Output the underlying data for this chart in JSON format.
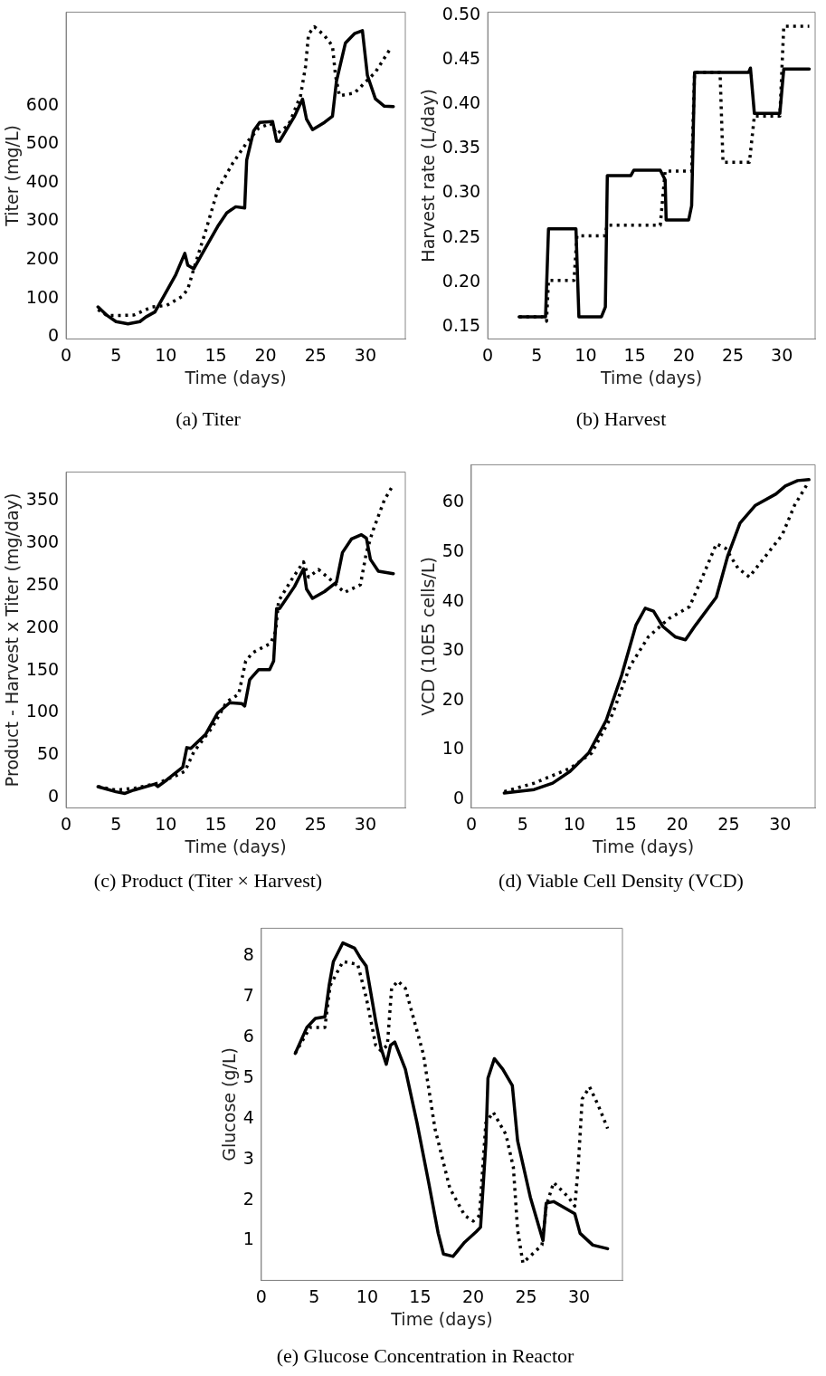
{
  "chart_data": [
    {
      "type": "line",
      "xlabel": "Time (days)",
      "ylabel": "Titer (mg/L)",
      "annotations": [
        "(a) Titer"
      ],
      "xlim": [
        0,
        34
      ],
      "ylim": [
        -5,
        843
      ],
      "xticks": [
        0,
        5,
        10,
        15,
        20,
        25,
        30
      ],
      "yticks": [
        0,
        100,
        200,
        300,
        400,
        500,
        600
      ],
      "series": [
        {
          "color": "#000000",
          "line_style": "solid",
          "x": [
            3.2,
            4.1,
            5.0,
            6.2,
            7.4,
            8.0,
            8.9,
            10.1,
            11.0,
            11.9,
            12.2,
            12.8,
            13.7,
            15.2,
            16.1,
            17.0,
            17.9,
            18.1,
            18.8,
            19.4,
            20.7,
            21.1,
            21.4,
            22.9,
            23.7,
            24.1,
            24.7,
            25.9,
            26.7,
            27.1,
            28.0,
            28.9,
            29.7,
            30.2,
            31.0,
            31.9,
            32.8
          ],
          "values": [
            78,
            56,
            40,
            34,
            40,
            52,
            65,
            120,
            162,
            217,
            186,
            177,
            219,
            287,
            322,
            338,
            335,
            459,
            535,
            557,
            559,
            508,
            508,
            573,
            617,
            565,
            538,
            557,
            573,
            664,
            763,
            787,
            795,
            679,
            618,
            599,
            598
          ]
        },
        {
          "color": "#000000",
          "line_style": "dotted",
          "x": [
            3.2,
            4.1,
            5.6,
            6.8,
            8.6,
            10.1,
            11.6,
            12.2,
            12.8,
            14.0,
            15.2,
            16.7,
            18.1,
            19.3,
            20.5,
            21.1,
            22.3,
            23.5,
            24.0,
            24.3,
            24.9,
            25.9,
            26.7,
            27.0,
            27.4,
            28.9,
            30.1,
            31.0,
            32.5
          ],
          "values": [
            71,
            56,
            56,
            57,
            78,
            82,
            105,
            124,
            177,
            276,
            382,
            451,
            504,
            542,
            554,
            527,
            550,
            626,
            702,
            786,
            805,
            782,
            755,
            679,
            626,
            633,
            664,
            687,
            748
          ]
        }
      ]
    },
    {
      "type": "line",
      "xlabel": "Time (days)",
      "ylabel": "Harvest rate (L/day)",
      "annotations": [
        "(b) Harvest"
      ],
      "xlim": [
        0,
        33.4
      ],
      "ylim": [
        0.136,
        0.504
      ],
      "xticks": [
        0,
        5,
        10,
        15,
        20,
        25,
        30
      ],
      "yticks": [
        0.15,
        {
          "value": 0.2,
          "label": "0.20"
        },
        0.25,
        {
          "value": 0.3,
          "label": "0.30"
        },
        0.35,
        {
          "value": 0.4,
          "label": "0.40"
        },
        0.45,
        {
          "value": 0.5,
          "label": "0.50"
        }
      ],
      "series": [
        {
          "color": "#000000",
          "line_style": "solid",
          "x": [
            3.2,
            5.9,
            6.2,
            9.0,
            9.3,
            11.6,
            12.0,
            12.2,
            14.6,
            14.9,
            17.6,
            18.1,
            18.2,
            20.5,
            20.8,
            21.1,
            26.6,
            26.8,
            27.2,
            29.8,
            30.2,
            32.8
          ],
          "values": [
            0.161,
            0.161,
            0.26,
            0.26,
            0.161,
            0.161,
            0.172,
            0.32,
            0.32,
            0.326,
            0.326,
            0.315,
            0.27,
            0.27,
            0.286,
            0.436,
            0.436,
            0.441,
            0.39,
            0.39,
            0.44,
            0.44
          ]
        },
        {
          "color": "#000000",
          "line_style": "dotted",
          "x": [
            3.2,
            5.6,
            6.0,
            6.2,
            8.8,
            9.1,
            11.9,
            12.2,
            17.6,
            18.1,
            20.8,
            21.1,
            23.7,
            24.0,
            26.7,
            27.2,
            29.8,
            30.2,
            32.8
          ],
          "values": [
            0.161,
            0.161,
            0.156,
            0.202,
            0.202,
            0.252,
            0.252,
            0.264,
            0.264,
            0.325,
            0.325,
            0.436,
            0.436,
            0.335,
            0.335,
            0.387,
            0.387,
            0.488,
            0.488
          ]
        }
      ]
    },
    {
      "type": "line",
      "xlabel": "Time (days)",
      "ylabel": "Product - Harvest x Titer (mg/day)",
      "annotations": [
        "(c) Product (Titer × Harvest)"
      ],
      "xlim": [
        0,
        34
      ],
      "ylim": [
        -12,
        384
      ],
      "xticks": [
        0,
        5,
        10,
        15,
        20,
        25,
        30
      ],
      "yticks": [
        0,
        50,
        100,
        150,
        200,
        250,
        300,
        350
      ],
      "series": [
        {
          "color": "#000000",
          "line_style": "solid",
          "x": [
            3.2,
            5.0,
            5.9,
            6.8,
            8.9,
            9.2,
            10.1,
            11.7,
            12.1,
            12.5,
            14.0,
            15.2,
            16.4,
            17.6,
            17.9,
            18.4,
            19.3,
            20.4,
            20.8,
            21.1,
            21.4,
            22.9,
            23.8,
            24.1,
            24.7,
            25.9,
            27.1,
            27.7,
            28.6,
            29.6,
            30.1,
            30.5,
            31.3,
            32.8
          ],
          "values": [
            13,
            7,
            5,
            9,
            16,
            13,
            21,
            36,
            59,
            58,
            75,
            100,
            112,
            111,
            108,
            139,
            151,
            151,
            161,
            223,
            223,
            249,
            270,
            246,
            235,
            243,
            254,
            289,
            305,
            310,
            306,
            281,
            267,
            264
          ]
        },
        {
          "color": "#000000",
          "line_style": "dotted",
          "x": [
            3.2,
            5.0,
            6.8,
            9.2,
            11.0,
            11.9,
            12.8,
            14.6,
            16.1,
            17.3,
            18.0,
            18.7,
            20.5,
            21.0,
            21.3,
            22.6,
            23.8,
            24.3,
            25.3,
            26.5,
            27.9,
            29.5,
            30.1,
            30.7,
            31.9,
            32.6
          ],
          "values": [
            13,
            9,
            11,
            17,
            26,
            31,
            54,
            82,
            113,
            122,
            161,
            171,
            182,
            196,
            232,
            257,
            278,
            260,
            269,
            257,
            242,
            251,
            289,
            313,
            351,
            365
          ]
        }
      ]
    },
    {
      "type": "line",
      "xlabel": "Time (days)",
      "ylabel": "VCD (10E5 cells/L)",
      "annotations": [
        "(d) Viable Cell Density (VCD)"
      ],
      "xlim": [
        0,
        33.4
      ],
      "ylim": [
        -1.7,
        67.7
      ],
      "xticks": [
        0,
        5,
        10,
        15,
        20,
        25,
        30
      ],
      "yticks": [
        0,
        10,
        20,
        30,
        40,
        50,
        60
      ],
      "series": [
        {
          "color": "#000000",
          "line_style": "solid",
          "x": [
            3.2,
            6.1,
            7.9,
            9.6,
            11.4,
            13.1,
            14.6,
            16.0,
            16.9,
            17.7,
            18.6,
            19.8,
            20.8,
            21.8,
            23.8,
            24.9,
            26.1,
            27.6,
            29.6,
            30.5,
            31.7,
            32.8
          ],
          "values": [
            1.3,
            2.0,
            3.3,
            5.7,
            9.4,
            16.0,
            25.1,
            35.3,
            38.7,
            38.1,
            35.0,
            32.9,
            32.3,
            35.3,
            40.9,
            49.2,
            55.9,
            59.5,
            61.8,
            63.4,
            64.5,
            64.7
          ]
        },
        {
          "color": "#000000",
          "line_style": "dotted",
          "x": [
            3.2,
            6.1,
            9.6,
            11.7,
            13.7,
            15.4,
            17.2,
            19.2,
            21.2,
            22.7,
            23.8,
            24.7,
            25.9,
            27.0,
            28.8,
            30.2,
            31.4,
            32.7
          ],
          "values": [
            1.6,
            3.3,
            6.3,
            9.4,
            17.2,
            26.9,
            32.9,
            36.6,
            39.0,
            46.2,
            51.7,
            50.8,
            46.8,
            45.0,
            49.8,
            53.5,
            59.5,
            64.0
          ]
        }
      ]
    },
    {
      "type": "line",
      "xlabel": "Time (days)",
      "ylabel": "Glucose (g/L)",
      "annotations": [
        "(e) Glucose Concentration in Reactor"
      ],
      "xlim": [
        0,
        34.1
      ],
      "ylim": [
        0.02,
        8.69
      ],
      "xticks": [
        0,
        5,
        10,
        15,
        20,
        25,
        30
      ],
      "yticks": [
        1,
        2,
        3,
        4,
        5,
        6,
        7,
        8
      ],
      "series": [
        {
          "color": "#000000",
          "line_style": "solid",
          "x": [
            3.2,
            4.3,
            5.1,
            6.0,
            6.4,
            6.8,
            7.7,
            8.8,
            9.4,
            9.9,
            10.8,
            11.3,
            11.8,
            12.2,
            12.6,
            13.6,
            14.7,
            15.8,
            16.7,
            17.2,
            18.1,
            19.2,
            20.3,
            20.7,
            21.2,
            21.4,
            22.0,
            22.8,
            23.7,
            24.2,
            25.4,
            26.6,
            26.9,
            27.6,
            29.6,
            30.1,
            31.3,
            32.7
          ],
          "values": [
            5.61,
            6.25,
            6.47,
            6.51,
            7.28,
            7.87,
            8.33,
            8.2,
            7.94,
            7.76,
            6.4,
            5.74,
            5.34,
            5.81,
            5.89,
            5.22,
            3.9,
            2.43,
            1.18,
            0.67,
            0.61,
            0.96,
            1.22,
            1.33,
            3.39,
            5.0,
            5.48,
            5.22,
            4.82,
            3.46,
            2.07,
            1.0,
            1.92,
            1.96,
            1.66,
            1.18,
            0.89,
            0.8
          ]
        },
        {
          "color": "#000000",
          "line_style": "dotted",
          "x": [
            3.2,
            4.6,
            6.0,
            6.5,
            7.7,
            9.1,
            9.9,
            10.8,
            11.3,
            11.9,
            12.3,
            12.9,
            13.6,
            15.3,
            16.4,
            17.8,
            19.2,
            20.0,
            20.6,
            21.2,
            21.9,
            23.1,
            23.8,
            24.2,
            24.7,
            26.5,
            26.9,
            27.6,
            29.0,
            29.6,
            29.9,
            30.3,
            31.0,
            31.8,
            32.7
          ],
          "values": [
            5.61,
            6.25,
            6.25,
            7.28,
            7.87,
            7.8,
            6.99,
            5.81,
            5.67,
            5.81,
            7.21,
            7.39,
            7.21,
            5.59,
            3.75,
            2.29,
            1.62,
            1.48,
            1.62,
            3.9,
            4.16,
            3.61,
            2.8,
            1.26,
            0.45,
            0.89,
            1.85,
            2.43,
            2.07,
            1.85,
            2.73,
            4.49,
            4.78,
            4.34,
            3.76
          ]
        }
      ]
    }
  ]
}
